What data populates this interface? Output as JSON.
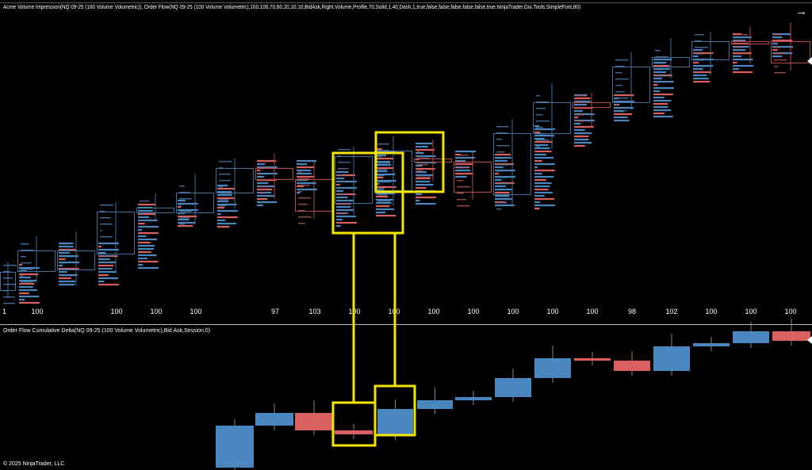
{
  "header": {
    "title": "Acme Volume Impression(NQ 09-25 (100 Volume Volumetric)), Order Flow(NQ 09-25 (100 Volume Volumetric),100,100,70,60,20,10,10,BidAsk,Right,Volume,Profile,70,Solid,1,40,Dash,1,true,false,false,false,false,false,true,NinjaTrader.Gui.Tools.SimpleFont,80)",
    "arrow": "→"
  },
  "volume_labels": [
    "1",
    "100",
    "100",
    "100",
    "100",
    "97",
    "103",
    "100",
    "100",
    "100",
    "100",
    "100",
    "100",
    "100",
    "98",
    "102",
    "100",
    "100",
    "100"
  ],
  "delta_panel": {
    "title": "Order Flow Cumulative Delta(NQ 09-25 (100 Volume Volumetric),Bid Ask,Session,0)"
  },
  "footer": {
    "copyright": "© 2025 NinjaTrader, LLC"
  }
}
